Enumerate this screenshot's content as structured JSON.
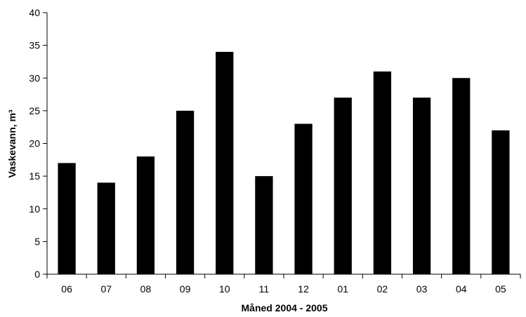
{
  "chart_data": {
    "type": "bar",
    "title": "",
    "xlabel": "Måned 2004 - 2005",
    "ylabel": "Vaskevann, m³",
    "categories": [
      "06",
      "07",
      "08",
      "09",
      "10",
      "11",
      "12",
      "01",
      "02",
      "03",
      "04",
      "05"
    ],
    "values": [
      17,
      14,
      18,
      25,
      34,
      15,
      23,
      27,
      31,
      27,
      30,
      22
    ],
    "ylim": [
      0,
      40
    ],
    "yticks": [
      0,
      5,
      10,
      15,
      20,
      25,
      30,
      35,
      40
    ],
    "grid": false,
    "legend": "none",
    "bar_color": "#000000"
  }
}
